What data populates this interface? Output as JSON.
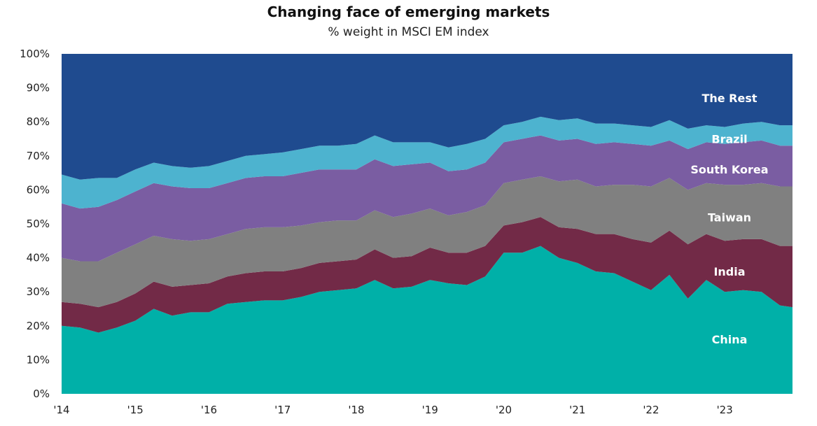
{
  "chart_data": {
    "type": "area",
    "stacked": true,
    "title": "Changing face of emerging markets",
    "subtitle": "% weight in MSCI EM index",
    "xlabel": "",
    "ylabel": "",
    "ylim": [
      0,
      100
    ],
    "xlim": [
      2014.0,
      2023.92
    ],
    "y_ticks": [
      "0%",
      "10%",
      "20%",
      "30%",
      "40%",
      "50%",
      "60%",
      "70%",
      "80%",
      "90%",
      "100%"
    ],
    "x_tick_values": [
      2014,
      2015,
      2016,
      2017,
      2018,
      2019,
      2020,
      2021,
      2022,
      2023
    ],
    "x_ticks": [
      "'14",
      "'15",
      "'16",
      "'17",
      "'18",
      "'19",
      "'20",
      "'21",
      "'22",
      "'23"
    ],
    "x": [
      2014.0,
      2014.25,
      2014.5,
      2014.75,
      2015.0,
      2015.25,
      2015.5,
      2015.75,
      2016.0,
      2016.25,
      2016.5,
      2016.75,
      2017.0,
      2017.25,
      2017.5,
      2017.75,
      2018.0,
      2018.25,
      2018.5,
      2018.75,
      2019.0,
      2019.25,
      2019.5,
      2019.75,
      2020.0,
      2020.25,
      2020.5,
      2020.75,
      2021.0,
      2021.25,
      2021.5,
      2021.75,
      2022.0,
      2022.25,
      2022.5,
      2022.75,
      2023.0,
      2023.25,
      2023.5,
      2023.75,
      2023.92
    ],
    "series": [
      {
        "name": "China",
        "label": "China",
        "color": "#00B0A8",
        "values": [
          20,
          19.5,
          18,
          19.5,
          21.5,
          25,
          23,
          24,
          24,
          26.5,
          27,
          27.5,
          27.5,
          28.5,
          30,
          30.5,
          31,
          33.5,
          31,
          31.5,
          33.5,
          32.5,
          32,
          34.5,
          41.5,
          41.5,
          43.5,
          40,
          38.5,
          36,
          35.5,
          33,
          30.5,
          35,
          28,
          33.5,
          30,
          30.5,
          30,
          26,
          25.5
        ]
      },
      {
        "name": "India",
        "label": "India",
        "color": "#722A47",
        "values": [
          7,
          7,
          7.5,
          7.5,
          8,
          8,
          8.5,
          8,
          8.5,
          8,
          8.5,
          8.5,
          8.5,
          8.5,
          8.5,
          8.5,
          8.5,
          9,
          9,
          9,
          9.5,
          9,
          9.5,
          9,
          8,
          9,
          8.5,
          9,
          10,
          11,
          11.5,
          12.5,
          14,
          13,
          16,
          13.5,
          15,
          15,
          15.5,
          17.5,
          18
        ]
      },
      {
        "name": "Taiwan",
        "label": "Taiwan",
        "color": "#808080",
        "values": [
          13,
          12.5,
          13.5,
          14.5,
          14.5,
          13.5,
          14,
          13,
          13,
          12.5,
          13,
          13,
          13,
          12.5,
          12,
          12,
          11.5,
          11.5,
          12,
          12.5,
          11.5,
          11,
          12,
          12,
          12.5,
          12.5,
          12,
          13.5,
          14.5,
          14,
          14.5,
          16,
          16.5,
          15.5,
          16,
          15,
          16.5,
          16,
          16.5,
          17.5,
          17.5
        ]
      },
      {
        "name": "South Korea",
        "label": "South Korea",
        "color": "#7A5DA2",
        "values": [
          16,
          15.5,
          16,
          15.5,
          15.5,
          15.5,
          15.5,
          15.5,
          15,
          15,
          15,
          15,
          15,
          15.5,
          15.5,
          15,
          15,
          15,
          15,
          14.5,
          13.5,
          13,
          12.5,
          12.5,
          12,
          12,
          12,
          12,
          12,
          12.5,
          12.5,
          12,
          12,
          11,
          12,
          12,
          12,
          12.5,
          12.5,
          12,
          12
        ]
      },
      {
        "name": "Brazil",
        "label": "Brazil",
        "color": "#4DB3CF",
        "values": [
          8.5,
          8.5,
          8.5,
          6.5,
          6.5,
          6,
          6,
          6,
          6.5,
          6.5,
          6.5,
          6.5,
          7,
          7,
          7,
          7,
          7.5,
          7,
          7,
          6.5,
          6,
          7,
          7.5,
          7,
          5,
          5,
          5.5,
          6,
          6,
          6,
          5.5,
          5.5,
          5.5,
          6,
          6,
          5,
          5,
          5.5,
          5.5,
          6,
          6
        ]
      },
      {
        "name": "The Rest",
        "label": "The Rest",
        "color": "#1F4B8F",
        "values": [
          35.5,
          37,
          36.5,
          36.5,
          34,
          32,
          33,
          33.5,
          33,
          31.5,
          30,
          29.5,
          29,
          28,
          27,
          27,
          26.5,
          24,
          26,
          26,
          26,
          27.5,
          26.5,
          25,
          21,
          20,
          18.5,
          19.5,
          19,
          20.5,
          20.5,
          21,
          21.5,
          19.5,
          22,
          21,
          21.5,
          20.5,
          20,
          21,
          21
        ]
      }
    ]
  }
}
